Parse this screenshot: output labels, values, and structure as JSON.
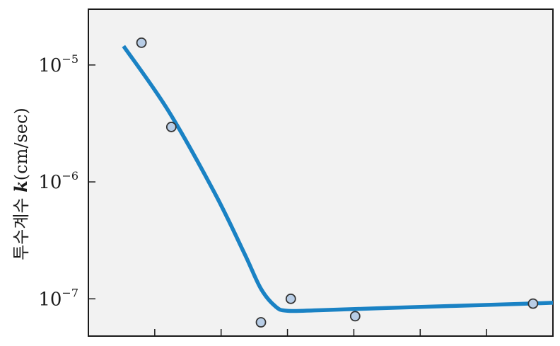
{
  "chart_data": {
    "type": "line",
    "xlabel": "",
    "ylabel_prefix": "투수계수 ",
    "ylabel_var": "k",
    "ylabel_unit": "(cm/sec)",
    "y_scale": "log",
    "ylim": [
      4.8e-08,
      3e-05
    ],
    "y_ticks": [
      {
        "value": 1e-05,
        "base": "10",
        "exp": "−5"
      },
      {
        "value": 1e-06,
        "base": "10",
        "exp": "−6"
      },
      {
        "value": 1e-07,
        "base": "10",
        "exp": "−7"
      }
    ],
    "xlim": [
      0,
      7
    ],
    "x_ticks": [
      1,
      2,
      3,
      4,
      5,
      6
    ],
    "x_tick_labels_shown": false,
    "grid": false,
    "plot_background": "#f2f2f2",
    "series": [
      {
        "kind": "points",
        "color": "#b8cde6",
        "edge": "#333333",
        "x": [
          0.8,
          1.25,
          2.6,
          3.05,
          4.02,
          6.7
        ],
        "y": [
          1.55e-05,
          2.95e-06,
          6.3e-08,
          1e-07,
          7.1e-08,
          9.1e-08
        ]
      },
      {
        "kind": "curve",
        "color": "#1a82c4",
        "x": [
          0.53,
          1.2,
          1.9,
          2.35,
          2.6,
          2.82,
          3.0,
          3.5,
          4.5,
          5.5,
          6.5,
          7.0
        ],
        "y": [
          1.45e-05,
          4.1e-06,
          8.1e-07,
          2.45e-07,
          1.22e-07,
          8.6e-08,
          7.9e-08,
          8e-08,
          8.35e-08,
          8.7e-08,
          9.05e-08,
          9.25e-08
        ]
      }
    ]
  }
}
